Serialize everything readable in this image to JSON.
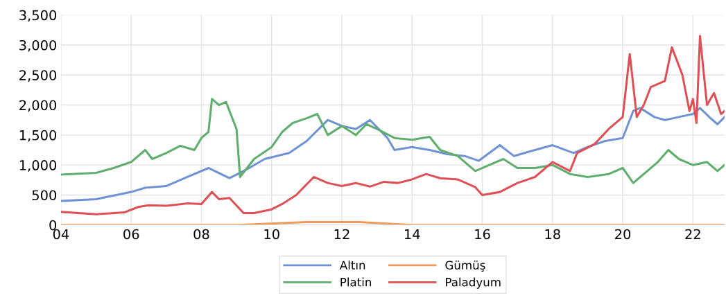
{
  "chart_data": {
    "type": "line",
    "xlim": [
      2004,
      2022.9
    ],
    "ylim": [
      0,
      3500
    ],
    "xticks": [
      {
        "value": 2004,
        "label": "04"
      },
      {
        "value": 2006,
        "label": "06"
      },
      {
        "value": 2008,
        "label": "08"
      },
      {
        "value": 2010,
        "label": "10"
      },
      {
        "value": 2012,
        "label": "12"
      },
      {
        "value": 2014,
        "label": "14"
      },
      {
        "value": 2016,
        "label": "16"
      },
      {
        "value": 2018,
        "label": "18"
      },
      {
        "value": 2020,
        "label": "20"
      },
      {
        "value": 2022,
        "label": "22"
      }
    ],
    "yticks": [
      {
        "value": 0,
        "label": "0"
      },
      {
        "value": 500,
        "label": "500"
      },
      {
        "value": 1000,
        "label": "1,000"
      },
      {
        "value": 1500,
        "label": "1,500"
      },
      {
        "value": 2000,
        "label": "2,000"
      },
      {
        "value": 2500,
        "label": "2,500"
      },
      {
        "value": 3000,
        "label": "3,000"
      },
      {
        "value": 3500,
        "label": "3,500"
      }
    ],
    "grid": true,
    "legend": "bottom",
    "marker": "none",
    "line_style": "solid",
    "series": [
      {
        "name": "Altın",
        "color": "#6f93d2",
        "x": [
          2004,
          2005,
          2006,
          2006.4,
          2007,
          2007.6,
          2008.2,
          2008.8,
          2009.3,
          2009.8,
          2010.5,
          2011,
          2011.6,
          2012,
          2012.4,
          2012.8,
          2013.3,
          2013.5,
          2014,
          2014.5,
          2015,
          2015.5,
          2015.9,
          2016.5,
          2016.9,
          2017.5,
          2018,
          2018.6,
          2019,
          2019.5,
          2020,
          2020.3,
          2020.5,
          2020.9,
          2021.2,
          2021.6,
          2022,
          2022.2,
          2022.5,
          2022.7,
          2022.9
        ],
        "values": [
          400,
          430,
          550,
          620,
          650,
          800,
          950,
          780,
          930,
          1100,
          1200,
          1400,
          1750,
          1650,
          1600,
          1750,
          1450,
          1250,
          1300,
          1250,
          1180,
          1150,
          1070,
          1330,
          1150,
          1250,
          1330,
          1200,
          1300,
          1400,
          1450,
          1900,
          1950,
          1800,
          1750,
          1800,
          1850,
          1950,
          1780,
          1680,
          1800
        ]
      },
      {
        "name": "Gümüş",
        "color": "#ee9a5c",
        "x": [
          2004,
          2006,
          2008,
          2009,
          2011,
          2012.5,
          2014,
          2016,
          2018,
          2020,
          2021,
          2022,
          2022.9
        ],
        "values": [
          0,
          0,
          0,
          0,
          50,
          50,
          0,
          0,
          0,
          0,
          0,
          0,
          0
        ]
      },
      {
        "name": "Platin",
        "color": "#5fae6e",
        "x": [
          2004,
          2005,
          2005.5,
          2006,
          2006.4,
          2006.6,
          2007,
          2007.4,
          2007.8,
          2008,
          2008.2,
          2008.3,
          2008.5,
          2008.7,
          2009,
          2009.1,
          2009.5,
          2010,
          2010.3,
          2010.6,
          2011,
          2011.3,
          2011.6,
          2012,
          2012.4,
          2012.7,
          2013,
          2013.5,
          2014,
          2014.5,
          2014.8,
          2015.3,
          2015.8,
          2016.2,
          2016.6,
          2017,
          2017.5,
          2018,
          2018.5,
          2019,
          2019.6,
          2020,
          2020.3,
          2020.7,
          2021,
          2021.3,
          2021.6,
          2022,
          2022.4,
          2022.7,
          2022.9
        ],
        "values": [
          840,
          870,
          950,
          1050,
          1250,
          1100,
          1200,
          1320,
          1250,
          1450,
          1550,
          2100,
          2000,
          2050,
          1600,
          800,
          1100,
          1300,
          1550,
          1700,
          1780,
          1850,
          1500,
          1650,
          1500,
          1680,
          1600,
          1450,
          1420,
          1470,
          1250,
          1150,
          900,
          1000,
          1100,
          950,
          950,
          1000,
          850,
          800,
          850,
          950,
          700,
          900,
          1050,
          1250,
          1100,
          1000,
          1050,
          900,
          1000
        ]
      },
      {
        "name": "Paladyum",
        "color": "#dd5055",
        "x": [
          2004,
          2005,
          2005.8,
          2006.2,
          2006.5,
          2007,
          2007.6,
          2008,
          2008.3,
          2008.5,
          2008.8,
          2009.2,
          2009.5,
          2010,
          2010.3,
          2010.7,
          2011.2,
          2011.6,
          2012,
          2012.4,
          2012.8,
          2013.2,
          2013.6,
          2014,
          2014.4,
          2014.8,
          2015.3,
          2015.8,
          2016,
          2016.5,
          2017,
          2017.5,
          2018,
          2018.5,
          2018.7,
          2019.2,
          2019.6,
          2020,
          2020.2,
          2020.4,
          2020.6,
          2020.8,
          2021.2,
          2021.4,
          2021.7,
          2021.9,
          2022,
          2022.1,
          2022.2,
          2022.4,
          2022.6,
          2022.8,
          2022.9
        ],
        "values": [
          220,
          180,
          210,
          300,
          330,
          320,
          360,
          350,
          550,
          430,
          450,
          200,
          200,
          260,
          350,
          500,
          800,
          700,
          650,
          700,
          640,
          720,
          700,
          760,
          850,
          780,
          760,
          630,
          500,
          550,
          700,
          800,
          1050,
          900,
          1200,
          1350,
          1600,
          1800,
          2850,
          1800,
          2000,
          2300,
          2400,
          2960,
          2500,
          1900,
          2100,
          1700,
          3150,
          2000,
          2200,
          1850,
          1900
        ]
      }
    ]
  }
}
